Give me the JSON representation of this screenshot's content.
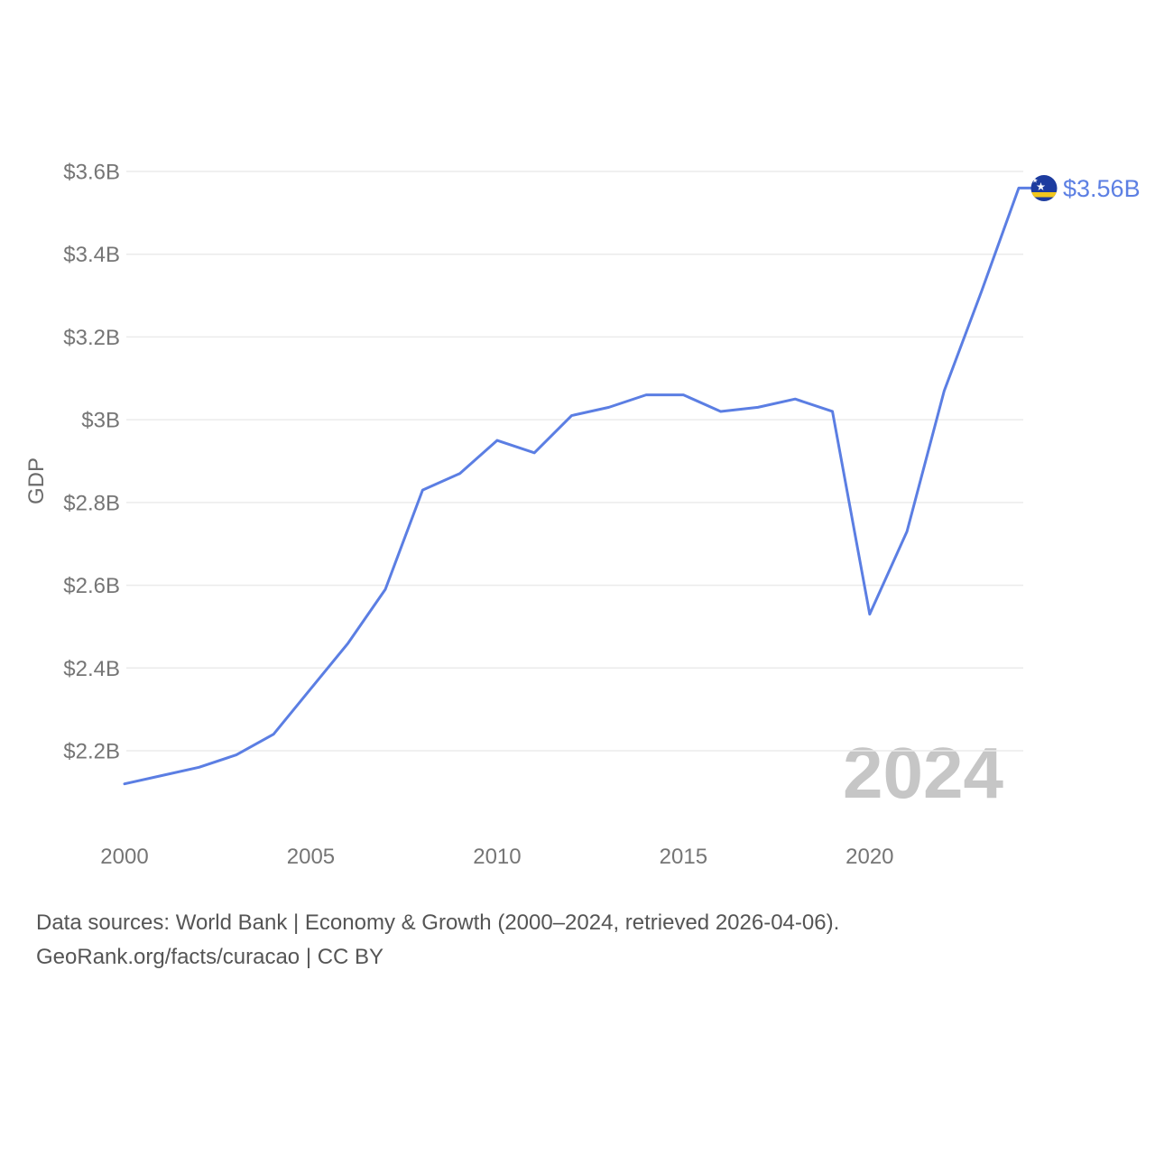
{
  "chart_data": {
    "type": "line",
    "ylabel": "GDP",
    "watermark": "2024",
    "end_label": "$3.56B",
    "x_domain": [
      2000,
      2024
    ],
    "y_domain": [
      2.2,
      3.6
    ],
    "grid": true,
    "legend_position": "none",
    "x": [
      2000,
      2001,
      2002,
      2003,
      2004,
      2005,
      2006,
      2007,
      2008,
      2009,
      2010,
      2011,
      2012,
      2013,
      2014,
      2015,
      2016,
      2017,
      2018,
      2019,
      2020,
      2021,
      2022,
      2023,
      2024
    ],
    "series": [
      {
        "name": "GDP",
        "values": [
          2.12,
          2.14,
          2.16,
          2.19,
          2.24,
          2.35,
          2.46,
          2.59,
          2.83,
          2.87,
          2.95,
          2.92,
          3.01,
          3.03,
          3.06,
          3.06,
          3.02,
          3.03,
          3.05,
          3.02,
          2.53,
          2.73,
          3.07,
          3.31,
          3.56
        ]
      }
    ],
    "y_ticks": [
      {
        "value": 3.6,
        "label": "$3.6B"
      },
      {
        "value": 3.4,
        "label": "$3.4B"
      },
      {
        "value": 3.2,
        "label": "$3.2B"
      },
      {
        "value": 3.0,
        "label": "$3B"
      },
      {
        "value": 2.8,
        "label": "$2.8B"
      },
      {
        "value": 2.6,
        "label": "$2.6B"
      },
      {
        "value": 2.4,
        "label": "$2.4B"
      },
      {
        "value": 2.2,
        "label": "$2.2B"
      }
    ],
    "x_ticks": [
      {
        "value": 2000,
        "label": "2000"
      },
      {
        "value": 2005,
        "label": "2005"
      },
      {
        "value": 2010,
        "label": "2010"
      },
      {
        "value": 2015,
        "label": "2015"
      },
      {
        "value": 2020,
        "label": "2020"
      }
    ],
    "colors": {
      "line": "#5B7EE3",
      "end_label": "#5C7FE3",
      "grid": "#EBEBEB",
      "tick": "#757575",
      "axis_title": "#6B6B6B",
      "watermark": "#C6C6C6",
      "footer": "#555555",
      "flag_blue": "#1D3C9F",
      "flag_yellow": "#F2C71D",
      "flag_star": "#FFFFFF"
    }
  },
  "footer": {
    "line1": "Data sources: World Bank | Economy & Growth (2000–2024, retrieved 2026-04-06).",
    "line2": "GeoRank.org/facts/curacao | CC BY"
  }
}
